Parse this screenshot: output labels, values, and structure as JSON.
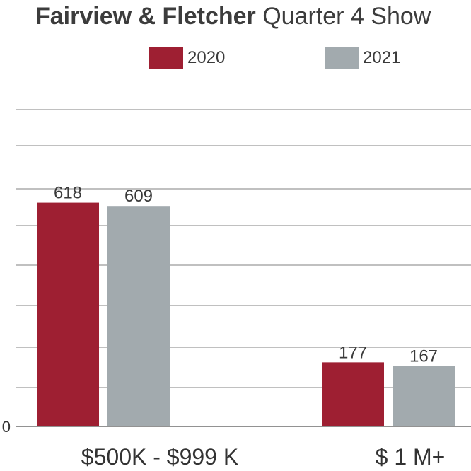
{
  "chart_data": {
    "type": "bar",
    "title_bold": "Fairview & Fletcher",
    "title_rest": "Quarter 4 Show",
    "categories": [
      "$500K - $999 K",
      "$ 1 M+"
    ],
    "series": [
      {
        "name": "2020",
        "values": [
          618,
          177
        ],
        "color": "#9e1f32"
      },
      {
        "name": "2021",
        "values": [
          609,
          167
        ],
        "color": "#a2aaae"
      }
    ],
    "y_tick_labels": [
      "0"
    ],
    "ylim": [
      0,
      875
    ],
    "grid": true,
    "legend_position": "top-center"
  }
}
